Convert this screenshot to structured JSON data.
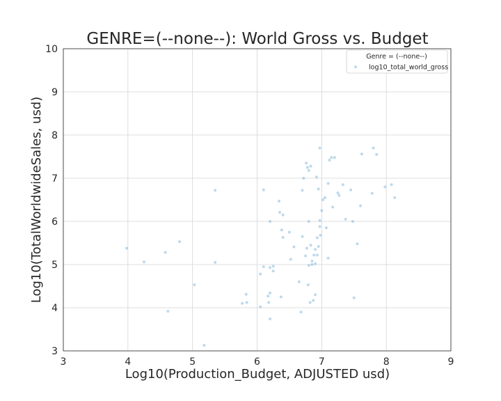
{
  "chart_data": {
    "type": "scatter",
    "title": "GENRE=(--none--): World Gross vs. Budget",
    "xlabel": "Log10(Production_Budget, ADJUSTED usd)",
    "ylabel": "Log10(TotalWorldwideSales, usd)",
    "xlim": [
      3,
      9
    ],
    "ylim": [
      3,
      10
    ],
    "xticks": [
      "3",
      "4",
      "5",
      "6",
      "7",
      "8",
      "9"
    ],
    "yticks": [
      "3",
      "4",
      "5",
      "6",
      "7",
      "8",
      "9",
      "10"
    ],
    "grid": true,
    "legend": {
      "placement": "top-right",
      "title": "Genre = (--none--)",
      "entries": [
        "log10_total_world_gross"
      ]
    },
    "colors": {
      "point": "#5b9fd0"
    },
    "series": [
      {
        "name": "log10_total_world_gross",
        "points": [
          [
            3.98,
            5.38
          ],
          [
            4.25,
            5.06
          ],
          [
            4.58,
            5.28
          ],
          [
            4.62,
            3.92
          ],
          [
            4.8,
            5.53
          ],
          [
            5.03,
            4.53
          ],
          [
            5.18,
            3.13
          ],
          [
            5.35,
            6.72
          ],
          [
            5.35,
            5.05
          ],
          [
            5.77,
            4.1
          ],
          [
            5.83,
            4.31
          ],
          [
            5.84,
            4.12
          ],
          [
            6.05,
            4.78
          ],
          [
            6.05,
            4.02
          ],
          [
            6.1,
            4.95
          ],
          [
            6.1,
            6.73
          ],
          [
            6.17,
            4.27
          ],
          [
            6.18,
            4.12
          ],
          [
            6.2,
            3.74
          ],
          [
            6.2,
            4.34
          ],
          [
            6.2,
            4.93
          ],
          [
            6.2,
            6.0
          ],
          [
            6.25,
            4.96
          ],
          [
            6.25,
            4.85
          ],
          [
            6.34,
            6.47
          ],
          [
            6.35,
            6.21
          ],
          [
            6.37,
            4.25
          ],
          [
            6.38,
            5.8
          ],
          [
            6.4,
            5.63
          ],
          [
            6.4,
            6.15
          ],
          [
            6.5,
            5.75
          ],
          [
            6.52,
            5.12
          ],
          [
            6.57,
            5.41
          ],
          [
            6.65,
            4.6
          ],
          [
            6.68,
            3.9
          ],
          [
            6.7,
            5.65
          ],
          [
            6.7,
            6.72
          ],
          [
            6.72,
            7.0
          ],
          [
            6.75,
            5.2
          ],
          [
            6.76,
            7.35
          ],
          [
            6.77,
            5.38
          ],
          [
            6.78,
            7.25
          ],
          [
            6.79,
            4.53
          ],
          [
            6.8,
            7.18
          ],
          [
            6.8,
            6.0
          ],
          [
            6.8,
            4.98
          ],
          [
            6.82,
            4.12
          ],
          [
            6.83,
            7.28
          ],
          [
            6.83,
            5.45
          ],
          [
            6.85,
            5.08
          ],
          [
            6.85,
            5.0
          ],
          [
            6.87,
            4.17
          ],
          [
            6.88,
            5.22
          ],
          [
            6.9,
            5.35
          ],
          [
            6.9,
            5.02
          ],
          [
            6.9,
            4.3
          ],
          [
            6.92,
            7.03
          ],
          [
            6.93,
            5.62
          ],
          [
            6.93,
            5.22
          ],
          [
            6.95,
            6.75
          ],
          [
            6.95,
            5.42
          ],
          [
            6.97,
            7.7
          ],
          [
            6.97,
            5.88
          ],
          [
            6.97,
            6.02
          ],
          [
            6.98,
            5.68
          ],
          [
            7.0,
            6.25
          ],
          [
            7.02,
            6.5
          ],
          [
            7.05,
            6.55
          ],
          [
            7.07,
            5.85
          ],
          [
            7.1,
            6.88
          ],
          [
            7.1,
            5.15
          ],
          [
            7.12,
            7.42
          ],
          [
            7.15,
            7.48
          ],
          [
            7.17,
            6.33
          ],
          [
            7.2,
            7.48
          ],
          [
            7.25,
            6.66
          ],
          [
            7.27,
            6.6
          ],
          [
            7.33,
            6.85
          ],
          [
            7.37,
            6.05
          ],
          [
            7.45,
            6.73
          ],
          [
            7.48,
            6.0
          ],
          [
            7.5,
            4.23
          ],
          [
            7.55,
            5.48
          ],
          [
            7.6,
            6.36
          ],
          [
            7.62,
            7.56
          ],
          [
            7.78,
            6.65
          ],
          [
            7.8,
            7.7
          ],
          [
            7.85,
            7.55
          ],
          [
            7.98,
            6.8
          ],
          [
            8.08,
            6.85
          ],
          [
            8.13,
            6.55
          ]
        ]
      }
    ]
  }
}
